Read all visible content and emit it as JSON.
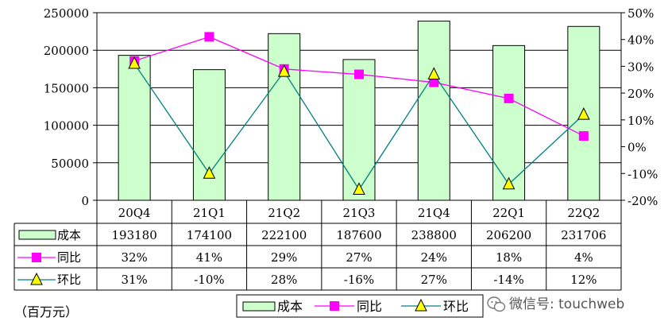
{
  "chart_data": {
    "type": "bar",
    "categories": [
      "20Q4",
      "21Q1",
      "21Q2",
      "21Q3",
      "21Q4",
      "22Q1",
      "22Q2"
    ],
    "series": [
      {
        "name": "成本",
        "kind": "bar",
        "axis": "left",
        "color": "#ccffcc",
        "values": [
          193180,
          174100,
          222100,
          187600,
          238800,
          206200,
          231706
        ],
        "labels": [
          "193180",
          "174100",
          "222100",
          "187600",
          "238800",
          "206200",
          "231706"
        ]
      },
      {
        "name": "同比",
        "kind": "line",
        "axis": "right",
        "color": "#ff00ff",
        "marker": "square",
        "values": [
          32,
          41,
          29,
          27,
          24,
          18,
          4
        ],
        "labels": [
          "32%",
          "41%",
          "29%",
          "27%",
          "24%",
          "18%",
          "4%"
        ]
      },
      {
        "name": "环比",
        "kind": "line",
        "axis": "right",
        "color": "#008080",
        "marker": "triangle",
        "marker_color": "#ffff00",
        "values": [
          31,
          -10,
          28,
          -16,
          27,
          -14,
          12
        ],
        "labels": [
          "31%",
          "-10%",
          "28%",
          "-16%",
          "27%",
          "-14%",
          "12%"
        ]
      }
    ],
    "y_left": {
      "min": 0,
      "max": 250000,
      "ticks": [
        0,
        50000,
        100000,
        150000,
        200000,
        250000
      ],
      "tick_labels": [
        "0",
        "50000",
        "100000",
        "150000",
        "200000",
        "250000"
      ]
    },
    "y_right": {
      "min": -20,
      "max": 50,
      "ticks": [
        -20,
        -10,
        0,
        10,
        20,
        30,
        40,
        50
      ],
      "tick_labels": [
        "-20%",
        "-10%",
        "0%",
        "10%",
        "20%",
        "30%",
        "40%",
        "50%"
      ]
    },
    "grid": true,
    "data_table": true,
    "legend": "bottom"
  },
  "unit_label": "（百万元）",
  "watermark": {
    "icon": "wechat-icon",
    "text": "微信号: touchweb"
  }
}
